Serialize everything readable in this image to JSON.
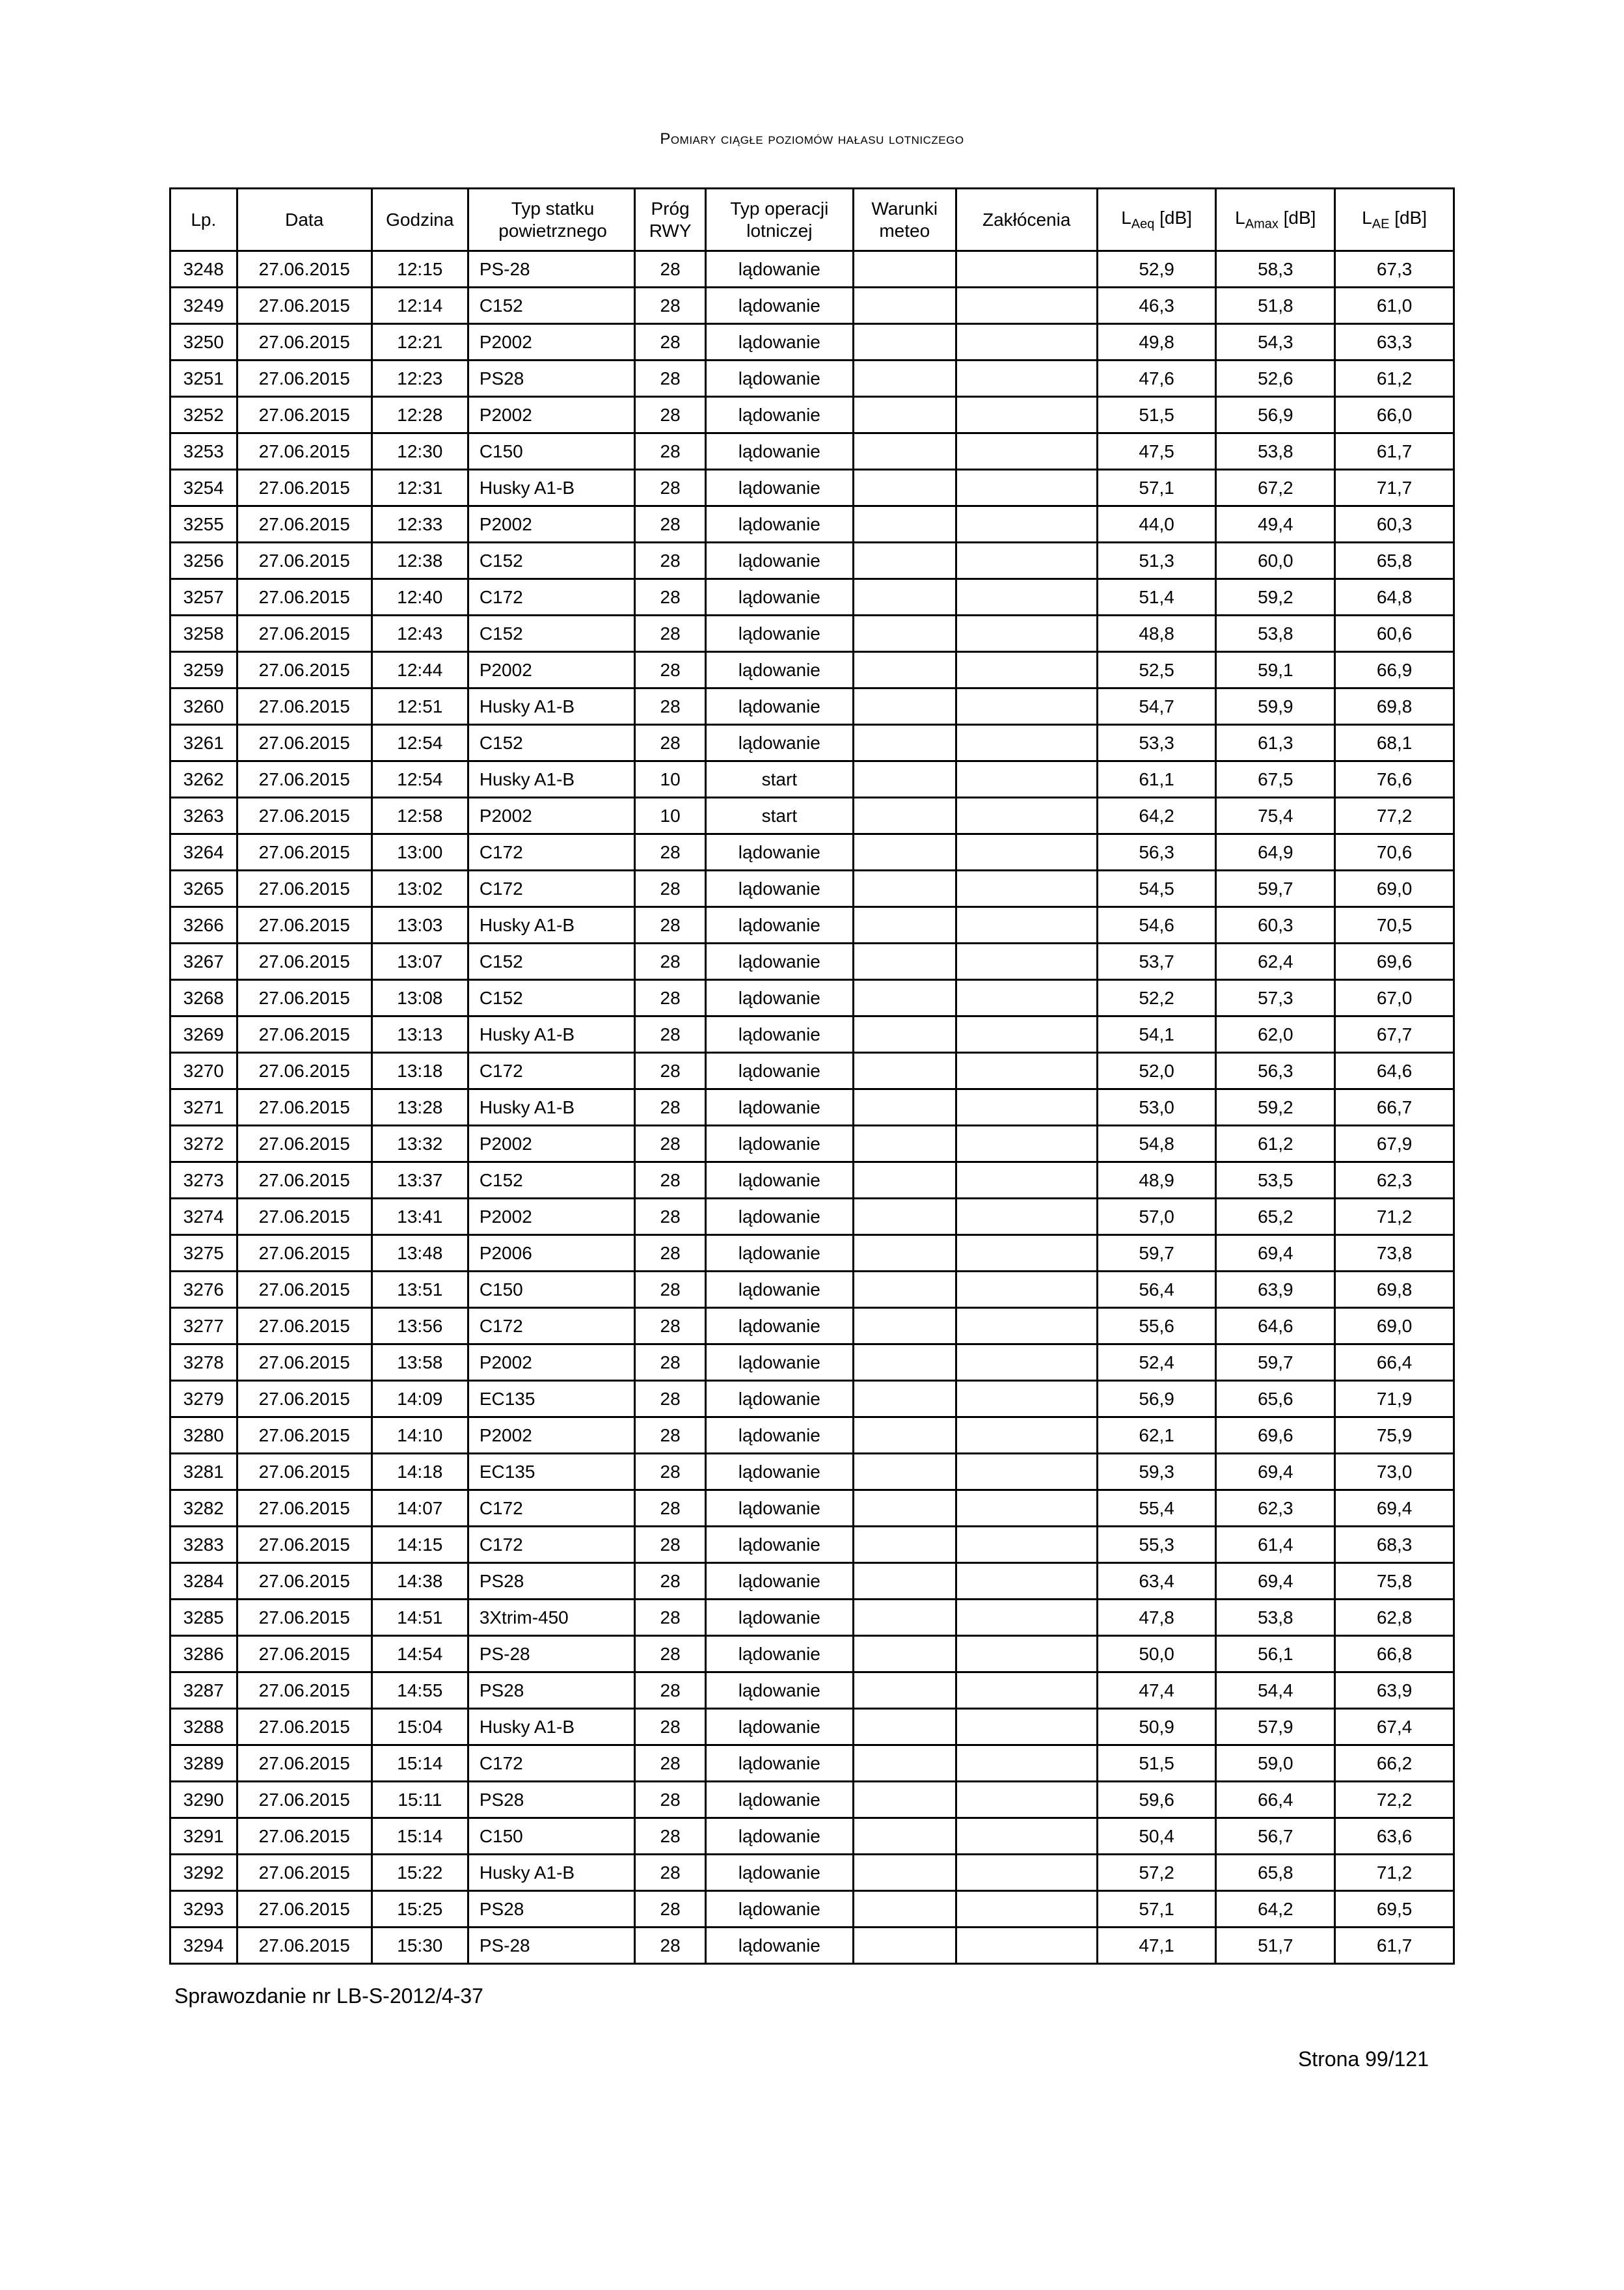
{
  "title": "Pomiary ciągłe poziomów hałasu lotniczego",
  "headers": {
    "lp": "Lp.",
    "data": "Data",
    "godzina": "Godzina",
    "typ_statku": "Typ statku powietrznego",
    "prog_rwy": "Próg RWY",
    "typ_operacji": "Typ operacji lotniczej",
    "warunki_meteo": "Warunki meteo",
    "zaklocenia": "Zakłócenia",
    "laeq": "LAeq [dB]",
    "lamax": "LAmax [dB]",
    "lae": "LAE [dB]"
  },
  "rows": [
    {
      "lp": "3248",
      "data": "27.06.2015",
      "godz": "12:15",
      "typ": "PS-28",
      "prog": "28",
      "oper": "lądowanie",
      "war": "",
      "zak": "",
      "l1": "52,9",
      "l2": "58,3",
      "l3": "67,3"
    },
    {
      "lp": "3249",
      "data": "27.06.2015",
      "godz": "12:14",
      "typ": "C152",
      "prog": "28",
      "oper": "lądowanie",
      "war": "",
      "zak": "",
      "l1": "46,3",
      "l2": "51,8",
      "l3": "61,0"
    },
    {
      "lp": "3250",
      "data": "27.06.2015",
      "godz": "12:21",
      "typ": "P2002",
      "prog": "28",
      "oper": "lądowanie",
      "war": "",
      "zak": "",
      "l1": "49,8",
      "l2": "54,3",
      "l3": "63,3"
    },
    {
      "lp": "3251",
      "data": "27.06.2015",
      "godz": "12:23",
      "typ": "PS28",
      "prog": "28",
      "oper": "lądowanie",
      "war": "",
      "zak": "",
      "l1": "47,6",
      "l2": "52,6",
      "l3": "61,2"
    },
    {
      "lp": "3252",
      "data": "27.06.2015",
      "godz": "12:28",
      "typ": "P2002",
      "prog": "28",
      "oper": "lądowanie",
      "war": "",
      "zak": "",
      "l1": "51,5",
      "l2": "56,9",
      "l3": "66,0"
    },
    {
      "lp": "3253",
      "data": "27.06.2015",
      "godz": "12:30",
      "typ": "C150",
      "prog": "28",
      "oper": "lądowanie",
      "war": "",
      "zak": "",
      "l1": "47,5",
      "l2": "53,8",
      "l3": "61,7"
    },
    {
      "lp": "3254",
      "data": "27.06.2015",
      "godz": "12:31",
      "typ": "Husky A1-B",
      "prog": "28",
      "oper": "lądowanie",
      "war": "",
      "zak": "",
      "l1": "57,1",
      "l2": "67,2",
      "l3": "71,7"
    },
    {
      "lp": "3255",
      "data": "27.06.2015",
      "godz": "12:33",
      "typ": "P2002",
      "prog": "28",
      "oper": "lądowanie",
      "war": "",
      "zak": "",
      "l1": "44,0",
      "l2": "49,4",
      "l3": "60,3"
    },
    {
      "lp": "3256",
      "data": "27.06.2015",
      "godz": "12:38",
      "typ": "C152",
      "prog": "28",
      "oper": "lądowanie",
      "war": "",
      "zak": "",
      "l1": "51,3",
      "l2": "60,0",
      "l3": "65,8"
    },
    {
      "lp": "3257",
      "data": "27.06.2015",
      "godz": "12:40",
      "typ": "C172",
      "prog": "28",
      "oper": "lądowanie",
      "war": "",
      "zak": "",
      "l1": "51,4",
      "l2": "59,2",
      "l3": "64,8"
    },
    {
      "lp": "3258",
      "data": "27.06.2015",
      "godz": "12:43",
      "typ": "C152",
      "prog": "28",
      "oper": "lądowanie",
      "war": "",
      "zak": "",
      "l1": "48,8",
      "l2": "53,8",
      "l3": "60,6"
    },
    {
      "lp": "3259",
      "data": "27.06.2015",
      "godz": "12:44",
      "typ": "P2002",
      "prog": "28",
      "oper": "lądowanie",
      "war": "",
      "zak": "",
      "l1": "52,5",
      "l2": "59,1",
      "l3": "66,9"
    },
    {
      "lp": "3260",
      "data": "27.06.2015",
      "godz": "12:51",
      "typ": "Husky A1-B",
      "prog": "28",
      "oper": "lądowanie",
      "war": "",
      "zak": "",
      "l1": "54,7",
      "l2": "59,9",
      "l3": "69,8"
    },
    {
      "lp": "3261",
      "data": "27.06.2015",
      "godz": "12:54",
      "typ": "C152",
      "prog": "28",
      "oper": "lądowanie",
      "war": "",
      "zak": "",
      "l1": "53,3",
      "l2": "61,3",
      "l3": "68,1"
    },
    {
      "lp": "3262",
      "data": "27.06.2015",
      "godz": "12:54",
      "typ": "Husky A1-B",
      "prog": "10",
      "oper": "start",
      "war": "",
      "zak": "",
      "l1": "61,1",
      "l2": "67,5",
      "l3": "76,6"
    },
    {
      "lp": "3263",
      "data": "27.06.2015",
      "godz": "12:58",
      "typ": "P2002",
      "prog": "10",
      "oper": "start",
      "war": "",
      "zak": "",
      "l1": "64,2",
      "l2": "75,4",
      "l3": "77,2"
    },
    {
      "lp": "3264",
      "data": "27.06.2015",
      "godz": "13:00",
      "typ": "C172",
      "prog": "28",
      "oper": "lądowanie",
      "war": "",
      "zak": "",
      "l1": "56,3",
      "l2": "64,9",
      "l3": "70,6"
    },
    {
      "lp": "3265",
      "data": "27.06.2015",
      "godz": "13:02",
      "typ": "C172",
      "prog": "28",
      "oper": "lądowanie",
      "war": "",
      "zak": "",
      "l1": "54,5",
      "l2": "59,7",
      "l3": "69,0"
    },
    {
      "lp": "3266",
      "data": "27.06.2015",
      "godz": "13:03",
      "typ": "Husky A1-B",
      "prog": "28",
      "oper": "lądowanie",
      "war": "",
      "zak": "",
      "l1": "54,6",
      "l2": "60,3",
      "l3": "70,5"
    },
    {
      "lp": "3267",
      "data": "27.06.2015",
      "godz": "13:07",
      "typ": "C152",
      "prog": "28",
      "oper": "lądowanie",
      "war": "",
      "zak": "",
      "l1": "53,7",
      "l2": "62,4",
      "l3": "69,6"
    },
    {
      "lp": "3268",
      "data": "27.06.2015",
      "godz": "13:08",
      "typ": "C152",
      "prog": "28",
      "oper": "lądowanie",
      "war": "",
      "zak": "",
      "l1": "52,2",
      "l2": "57,3",
      "l3": "67,0"
    },
    {
      "lp": "3269",
      "data": "27.06.2015",
      "godz": "13:13",
      "typ": "Husky A1-B",
      "prog": "28",
      "oper": "lądowanie",
      "war": "",
      "zak": "",
      "l1": "54,1",
      "l2": "62,0",
      "l3": "67,7"
    },
    {
      "lp": "3270",
      "data": "27.06.2015",
      "godz": "13:18",
      "typ": "C172",
      "prog": "28",
      "oper": "lądowanie",
      "war": "",
      "zak": "",
      "l1": "52,0",
      "l2": "56,3",
      "l3": "64,6"
    },
    {
      "lp": "3271",
      "data": "27.06.2015",
      "godz": "13:28",
      "typ": "Husky A1-B",
      "prog": "28",
      "oper": "lądowanie",
      "war": "",
      "zak": "",
      "l1": "53,0",
      "l2": "59,2",
      "l3": "66,7"
    },
    {
      "lp": "3272",
      "data": "27.06.2015",
      "godz": "13:32",
      "typ": "P2002",
      "prog": "28",
      "oper": "lądowanie",
      "war": "",
      "zak": "",
      "l1": "54,8",
      "l2": "61,2",
      "l3": "67,9"
    },
    {
      "lp": "3273",
      "data": "27.06.2015",
      "godz": "13:37",
      "typ": "C152",
      "prog": "28",
      "oper": "lądowanie",
      "war": "",
      "zak": "",
      "l1": "48,9",
      "l2": "53,5",
      "l3": "62,3"
    },
    {
      "lp": "3274",
      "data": "27.06.2015",
      "godz": "13:41",
      "typ": "P2002",
      "prog": "28",
      "oper": "lądowanie",
      "war": "",
      "zak": "",
      "l1": "57,0",
      "l2": "65,2",
      "l3": "71,2"
    },
    {
      "lp": "3275",
      "data": "27.06.2015",
      "godz": "13:48",
      "typ": "P2006",
      "prog": "28",
      "oper": "lądowanie",
      "war": "",
      "zak": "",
      "l1": "59,7",
      "l2": "69,4",
      "l3": "73,8"
    },
    {
      "lp": "3276",
      "data": "27.06.2015",
      "godz": "13:51",
      "typ": "C150",
      "prog": "28",
      "oper": "lądowanie",
      "war": "",
      "zak": "",
      "l1": "56,4",
      "l2": "63,9",
      "l3": "69,8"
    },
    {
      "lp": "3277",
      "data": "27.06.2015",
      "godz": "13:56",
      "typ": "C172",
      "prog": "28",
      "oper": "lądowanie",
      "war": "",
      "zak": "",
      "l1": "55,6",
      "l2": "64,6",
      "l3": "69,0"
    },
    {
      "lp": "3278",
      "data": "27.06.2015",
      "godz": "13:58",
      "typ": "P2002",
      "prog": "28",
      "oper": "lądowanie",
      "war": "",
      "zak": "",
      "l1": "52,4",
      "l2": "59,7",
      "l3": "66,4"
    },
    {
      "lp": "3279",
      "data": "27.06.2015",
      "godz": "14:09",
      "typ": "EC135",
      "prog": "28",
      "oper": "lądowanie",
      "war": "",
      "zak": "",
      "l1": "56,9",
      "l2": "65,6",
      "l3": "71,9"
    },
    {
      "lp": "3280",
      "data": "27.06.2015",
      "godz": "14:10",
      "typ": "P2002",
      "prog": "28",
      "oper": "lądowanie",
      "war": "",
      "zak": "",
      "l1": "62,1",
      "l2": "69,6",
      "l3": "75,9"
    },
    {
      "lp": "3281",
      "data": "27.06.2015",
      "godz": "14:18",
      "typ": "EC135",
      "prog": "28",
      "oper": "lądowanie",
      "war": "",
      "zak": "",
      "l1": "59,3",
      "l2": "69,4",
      "l3": "73,0"
    },
    {
      "lp": "3282",
      "data": "27.06.2015",
      "godz": "14:07",
      "typ": "C172",
      "prog": "28",
      "oper": "lądowanie",
      "war": "",
      "zak": "",
      "l1": "55,4",
      "l2": "62,3",
      "l3": "69,4"
    },
    {
      "lp": "3283",
      "data": "27.06.2015",
      "godz": "14:15",
      "typ": "C172",
      "prog": "28",
      "oper": "lądowanie",
      "war": "",
      "zak": "",
      "l1": "55,3",
      "l2": "61,4",
      "l3": "68,3"
    },
    {
      "lp": "3284",
      "data": "27.06.2015",
      "godz": "14:38",
      "typ": "PS28",
      "prog": "28",
      "oper": "lądowanie",
      "war": "",
      "zak": "",
      "l1": "63,4",
      "l2": "69,4",
      "l3": "75,8"
    },
    {
      "lp": "3285",
      "data": "27.06.2015",
      "godz": "14:51",
      "typ": "3Xtrim-450",
      "prog": "28",
      "oper": "lądowanie",
      "war": "",
      "zak": "",
      "l1": "47,8",
      "l2": "53,8",
      "l3": "62,8"
    },
    {
      "lp": "3286",
      "data": "27.06.2015",
      "godz": "14:54",
      "typ": "PS-28",
      "prog": "28",
      "oper": "lądowanie",
      "war": "",
      "zak": "",
      "l1": "50,0",
      "l2": "56,1",
      "l3": "66,8"
    },
    {
      "lp": "3287",
      "data": "27.06.2015",
      "godz": "14:55",
      "typ": "PS28",
      "prog": "28",
      "oper": "lądowanie",
      "war": "",
      "zak": "",
      "l1": "47,4",
      "l2": "54,4",
      "l3": "63,9"
    },
    {
      "lp": "3288",
      "data": "27.06.2015",
      "godz": "15:04",
      "typ": "Husky A1-B",
      "prog": "28",
      "oper": "lądowanie",
      "war": "",
      "zak": "",
      "l1": "50,9",
      "l2": "57,9",
      "l3": "67,4"
    },
    {
      "lp": "3289",
      "data": "27.06.2015",
      "godz": "15:14",
      "typ": "C172",
      "prog": "28",
      "oper": "lądowanie",
      "war": "",
      "zak": "",
      "l1": "51,5",
      "l2": "59,0",
      "l3": "66,2"
    },
    {
      "lp": "3290",
      "data": "27.06.2015",
      "godz": "15:11",
      "typ": "PS28",
      "prog": "28",
      "oper": "lądowanie",
      "war": "",
      "zak": "",
      "l1": "59,6",
      "l2": "66,4",
      "l3": "72,2"
    },
    {
      "lp": "3291",
      "data": "27.06.2015",
      "godz": "15:14",
      "typ": "C150",
      "prog": "28",
      "oper": "lądowanie",
      "war": "",
      "zak": "",
      "l1": "50,4",
      "l2": "56,7",
      "l3": "63,6"
    },
    {
      "lp": "3292",
      "data": "27.06.2015",
      "godz": "15:22",
      "typ": "Husky A1-B",
      "prog": "28",
      "oper": "lądowanie",
      "war": "",
      "zak": "",
      "l1": "57,2",
      "l2": "65,8",
      "l3": "71,2"
    },
    {
      "lp": "3293",
      "data": "27.06.2015",
      "godz": "15:25",
      "typ": "PS28",
      "prog": "28",
      "oper": "lądowanie",
      "war": "",
      "zak": "",
      "l1": "57,1",
      "l2": "64,2",
      "l3": "69,5"
    },
    {
      "lp": "3294",
      "data": "27.06.2015",
      "godz": "15:30",
      "typ": "PS-28",
      "prog": "28",
      "oper": "lądowanie",
      "war": "",
      "zak": "",
      "l1": "47,1",
      "l2": "51,7",
      "l3": "61,7"
    }
  ],
  "footer_left": "Sprawozdanie nr LB-S-2012/4-37",
  "footer_right": "Strona 99/121"
}
